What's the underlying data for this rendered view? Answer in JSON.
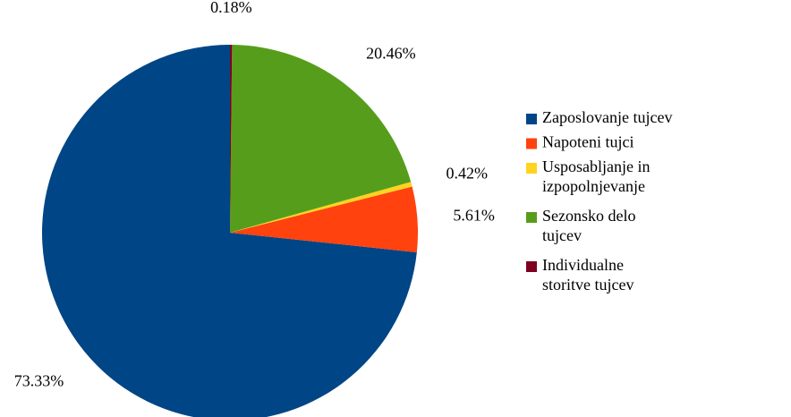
{
  "chart_data": {
    "type": "pie",
    "categories": [
      "Zaposlovanje tujcev",
      "Napoteni tujci",
      "Usposabljanje in izpopolnjevanje",
      "Sezonsko delo tujcev",
      "Individualne storitve tujcev"
    ],
    "values": [
      73.33,
      5.61,
      0.42,
      20.46,
      0.18
    ],
    "value_labels": [
      "73.33%",
      "5.61%",
      "0.42%",
      "20.46%",
      "0.18%"
    ],
    "colors": [
      "#004586",
      "#ff420e",
      "#ffd320",
      "#579d1c",
      "#7e0021"
    ],
    "legend": "right"
  }
}
